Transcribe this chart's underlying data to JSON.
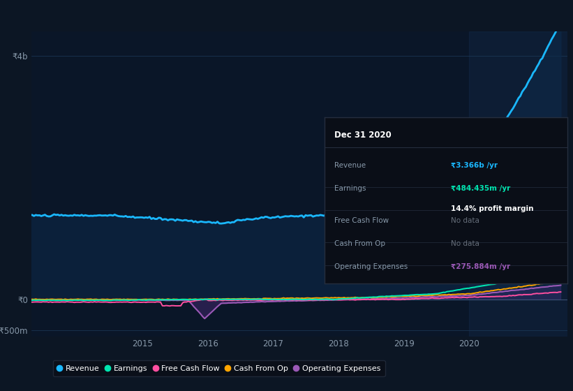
{
  "bg_color": "#0c1624",
  "plot_bg_color": "#0a1628",
  "grid_color": "#1e3050",
  "axis_label_color": "#8899aa",
  "zero_line_color": "#3a5070",
  "highlight_color": "#112240",
  "fill_color": "#0d2540",
  "xlim": [
    2013.3,
    2021.5
  ],
  "ylim": [
    -600000000,
    4400000000
  ],
  "ytick_vals": [
    -500000000,
    0,
    4000000000
  ],
  "ytick_labels": [
    "-₹500m",
    "₹0",
    "₹4b"
  ],
  "xtick_vals": [
    2015,
    2016,
    2017,
    2018,
    2019,
    2020
  ],
  "xtick_labels": [
    "2015",
    "2016",
    "2017",
    "2018",
    "2019",
    "2020"
  ],
  "legend_items": [
    {
      "label": "Revenue",
      "color": "#1ab8ff"
    },
    {
      "label": "Earnings",
      "color": "#00e5b0"
    },
    {
      "label": "Free Cash Flow",
      "color": "#ff4fa0"
    },
    {
      "label": "Cash From Op",
      "color": "#ffa500"
    },
    {
      "label": "Operating Expenses",
      "color": "#9b59b6"
    }
  ],
  "tooltip": {
    "date": "Dec 31 2020",
    "rows": [
      {
        "label": "Revenue",
        "value": "₹3.366b /yr",
        "value_color": "#1ab8ff",
        "secondary": null
      },
      {
        "label": "Earnings",
        "value": "₹484.435m /yr",
        "value_color": "#00e5b0",
        "secondary": "14.4% profit margin"
      },
      {
        "label": "Free Cash Flow",
        "value": "No data",
        "value_color": "#666e7a",
        "secondary": null
      },
      {
        "label": "Cash From Op",
        "value": "No data",
        "value_color": "#666e7a",
        "secondary": null
      },
      {
        "label": "Operating Expenses",
        "value": "₹275.884m /yr",
        "value_color": "#9b59b6",
        "secondary": null
      }
    ]
  }
}
